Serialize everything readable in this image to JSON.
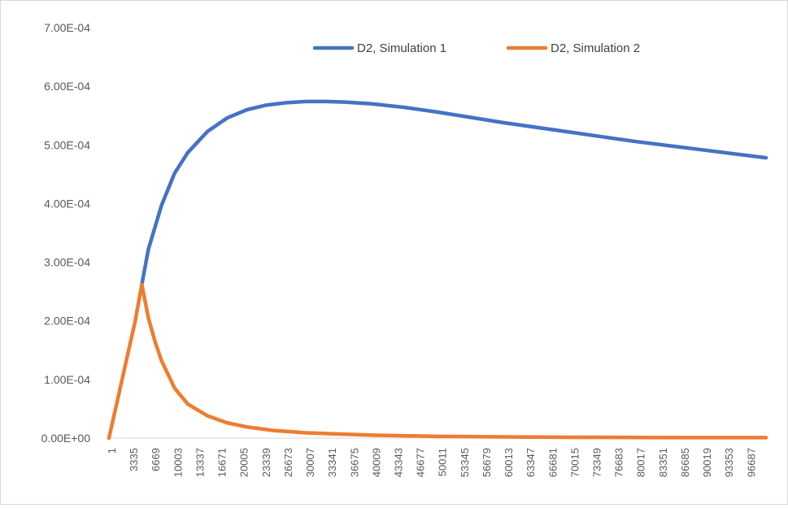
{
  "chart_data": {
    "type": "line",
    "title": "",
    "xlabel": "",
    "ylabel": "",
    "ylim": [
      0,
      0.0007
    ],
    "xlim": [
      1,
      99999
    ],
    "y_ticks": [
      0,
      0.0001,
      0.0002,
      0.0003,
      0.0004,
      0.0005,
      0.0006,
      0.0007
    ],
    "y_tick_labels": [
      "0.00E+00",
      "1.00E-04",
      "2.00E-04",
      "3.00E-04",
      "4.00E-04",
      "5.00E-04",
      "6.00E-04",
      "7.00E-04"
    ],
    "x_tick_labels": [
      "1",
      "3335",
      "6669",
      "10003",
      "13337",
      "16671",
      "20005",
      "23339",
      "26673",
      "30007",
      "33341",
      "36675",
      "40009",
      "43343",
      "46677",
      "50011",
      "53345",
      "56679",
      "60013",
      "63347",
      "66681",
      "70015",
      "73349",
      "76683",
      "80017",
      "83351",
      "86685",
      "90019",
      "93353",
      "96687"
    ],
    "grid": false,
    "legend_position": "top-right",
    "series": [
      {
        "name": "D2, Simulation 1",
        "color": "#4472c4",
        "x": [
          5000,
          6000,
          8000,
          10000,
          12000,
          15000,
          18000,
          21000,
          24000,
          27000,
          30000,
          33000,
          36000,
          40000,
          45000,
          50000,
          55000,
          60000,
          65000,
          70000,
          75000,
          80000,
          85000,
          90000,
          95000,
          99999
        ],
        "y": [
          0.000262,
          0.000322,
          0.000397,
          0.000452,
          0.000487,
          0.000523,
          0.000546,
          0.00056,
          0.000568,
          0.000572,
          0.000574,
          0.000574,
          0.000573,
          0.00057,
          0.000564,
          0.000556,
          0.000547,
          0.000538,
          0.00053,
          0.000522,
          0.000514,
          0.000506,
          0.000499,
          0.000492,
          0.000485,
          0.000478
        ]
      },
      {
        "name": "D2, Simulation 2",
        "color": "#ed7d31",
        "x": [
          1,
          1000,
          2000,
          3000,
          4000,
          5000,
          6000,
          7000,
          8000,
          10000,
          12000,
          15000,
          18000,
          21000,
          25000,
          30000,
          35000,
          40000,
          50000,
          60000,
          70000,
          80000,
          90000,
          99999
        ],
        "y": [
          0,
          5e-05,
          0.0001,
          0.00015,
          0.0002,
          0.000262,
          0.000205,
          0.000165,
          0.000132,
          8.5e-05,
          5.8e-05,
          3.8e-05,
          2.6e-05,
          1.9e-05,
          1.3e-05,
          9e-06,
          7e-06,
          5e-06,
          3e-06,
          2e-06,
          1.4e-06,
          1.1e-06,
          9e-07,
          8e-07
        ]
      }
    ]
  }
}
